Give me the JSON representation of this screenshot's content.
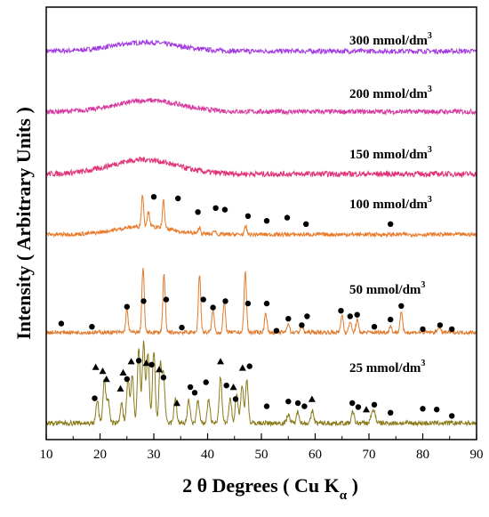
{
  "chart_data": {
    "type": "line",
    "xlabel_main": "2 θ Degrees ( Cu K",
    "xlabel_sub": "α",
    "xlabel_close": " )",
    "ylabel": "Intensity ( Arbitrary Units )",
    "xlim": [
      10,
      90
    ],
    "xticks": [
      "10",
      "20",
      "30",
      "40",
      "50",
      "60",
      "70",
      "80",
      "90"
    ],
    "grid": false,
    "legend": "none",
    "series": [
      {
        "name": "300 mmol/dm",
        "sup": "3",
        "color": "#a33be0",
        "baseline": 5,
        "peaks": [
          [
            28.5,
            11,
            6
          ]
        ],
        "noise": 3,
        "markers": []
      },
      {
        "name": "200 mmol/dm",
        "sup": "3",
        "color": "#d63aa0",
        "baseline": 5,
        "peaks": [
          [
            29,
            14,
            6
          ]
        ],
        "noise": 3,
        "markers": []
      },
      {
        "name": "150 mmol/dm",
        "sup": "3",
        "color": "#e0357a",
        "baseline": 5,
        "peaks": [
          [
            28,
            18,
            6
          ]
        ],
        "noise": 3.5,
        "markers": []
      },
      {
        "name": "100 mmol/dm",
        "sup": "3",
        "color": "#e87a2a",
        "baseline": 5,
        "peaks": [
          [
            28,
            10,
            5
          ],
          [
            27.9,
            40,
            0.2
          ],
          [
            31.8,
            35,
            0.2
          ],
          [
            29,
            18,
            0.25
          ],
          [
            38.5,
            8,
            0.2
          ],
          [
            41.3,
            5,
            0.2
          ],
          [
            47.1,
            10,
            0.2
          ]
        ],
        "noise": 2.5,
        "markers": [
          [
            "dot",
            30,
            52
          ],
          [
            "dot",
            34.5,
            50
          ],
          [
            "dot",
            38.2,
            33
          ],
          [
            "dot",
            41.5,
            38
          ],
          [
            "dot",
            43.2,
            36
          ],
          [
            "dot",
            47.5,
            28
          ],
          [
            "dot",
            51,
            22
          ],
          [
            "dot",
            54.8,
            26
          ],
          [
            "dot",
            58.3,
            18
          ],
          [
            "dot",
            74,
            18
          ]
        ]
      },
      {
        "name": "50 mmol/dm",
        "sup": "3",
        "color": "#e07a2e",
        "baseline": 5,
        "peaks": [
          [
            28,
            80,
            0.22
          ],
          [
            31.9,
            72,
            0.22
          ],
          [
            38.5,
            72,
            0.22
          ],
          [
            47,
            75,
            0.22
          ],
          [
            25,
            28,
            0.22
          ],
          [
            41,
            28,
            0.22
          ],
          [
            43.1,
            38,
            0.22
          ],
          [
            50.8,
            25,
            0.22
          ],
          [
            55,
            12,
            0.22
          ],
          [
            57.5,
            10,
            0.22
          ],
          [
            65,
            22,
            0.22
          ],
          [
            66.5,
            14,
            0.22
          ],
          [
            67.8,
            16,
            0.22
          ],
          [
            76,
            26,
            0.22
          ],
          [
            74,
            8,
            0.22
          ],
          [
            83,
            8,
            0.22
          ]
        ],
        "noise": 2.5,
        "markers": [
          [
            "dot",
            12.8,
            16
          ],
          [
            "dot",
            18.5,
            12
          ],
          [
            "dot",
            25,
            37
          ],
          [
            "dot",
            28.1,
            44
          ],
          [
            "dot",
            32.3,
            46
          ],
          [
            "dot",
            35.2,
            11
          ],
          [
            "dot",
            39.2,
            46
          ],
          [
            "dot",
            41,
            36
          ],
          [
            "dot",
            43.3,
            44
          ],
          [
            "dot",
            47.5,
            41
          ],
          [
            "dot",
            51,
            41
          ],
          [
            "dot",
            52.8,
            7
          ],
          [
            "dot",
            55,
            22
          ],
          [
            "dot",
            57.5,
            14
          ],
          [
            "dot",
            58.5,
            25
          ],
          [
            "dot",
            64.8,
            32
          ],
          [
            "dot",
            66.5,
            25
          ],
          [
            "dot",
            67.8,
            27
          ],
          [
            "dot",
            71,
            12
          ],
          [
            "dot",
            74,
            21
          ],
          [
            "dot",
            76,
            38
          ],
          [
            "dot",
            80,
            9
          ],
          [
            "dot",
            83.2,
            14
          ],
          [
            "dot",
            85.4,
            9
          ]
        ]
      },
      {
        "name": "25 mmol/dm",
        "sup": "3",
        "color": "#8a7a1a",
        "baseline": 5,
        "peaks": [
          [
            19.5,
            28,
            0.25
          ],
          [
            20.8,
            55,
            0.25
          ],
          [
            21.5,
            30,
            0.25
          ],
          [
            24,
            25,
            0.25
          ],
          [
            25.2,
            55,
            0.25
          ],
          [
            26,
            60,
            0.25
          ],
          [
            27.2,
            95,
            0.25
          ],
          [
            28.1,
            100,
            0.25
          ],
          [
            28.9,
            88,
            0.25
          ],
          [
            30,
            90,
            0.25
          ],
          [
            31.2,
            72,
            0.25
          ],
          [
            31.8,
            60,
            0.25
          ],
          [
            34,
            30,
            0.25
          ],
          [
            36.5,
            28,
            0.25
          ],
          [
            38.2,
            28,
            0.25
          ],
          [
            40.2,
            30,
            0.25
          ],
          [
            42.4,
            58,
            0.25
          ],
          [
            44.2,
            30,
            0.25
          ],
          [
            45.4,
            38,
            0.25
          ],
          [
            46.4,
            48,
            0.25
          ],
          [
            47.3,
            55,
            0.25
          ],
          [
            55,
            12,
            0.25
          ],
          [
            56.8,
            15,
            0.25
          ],
          [
            59.5,
            15,
            0.25
          ],
          [
            67,
            14,
            0.25
          ],
          [
            70.5,
            10,
            0.25
          ],
          [
            71,
            14,
            0.25
          ]
        ],
        "noise": 3,
        "markers": [
          [
            "tri",
            19.2,
            75
          ],
          [
            "dot",
            19.0,
            36
          ],
          [
            "tri",
            20.5,
            70
          ],
          [
            "tri",
            21.2,
            60
          ],
          [
            "tri",
            23.8,
            48
          ],
          [
            "tri",
            24.3,
            68
          ],
          [
            "dot",
            25.0,
            60
          ],
          [
            "tri",
            25.8,
            82
          ],
          [
            "dot",
            27.2,
            83
          ],
          [
            "tri",
            28.6,
            80
          ],
          [
            "dot",
            29.6,
            78
          ],
          [
            "tri",
            31.0,
            72
          ],
          [
            "dot",
            31.8,
            62
          ],
          [
            "tri",
            34.3,
            30
          ],
          [
            "dot",
            36.8,
            50
          ],
          [
            "dot",
            37.6,
            43
          ],
          [
            "dot",
            39.7,
            56
          ],
          [
            "tri",
            42.4,
            82
          ],
          [
            "dot",
            43.5,
            52
          ],
          [
            "tri",
            44.8,
            50
          ],
          [
            "dot",
            45.2,
            35
          ],
          [
            "tri",
            46.5,
            74
          ],
          [
            "dot",
            47.8,
            76
          ],
          [
            "dot",
            51.0,
            26
          ],
          [
            "dot",
            55.0,
            32
          ],
          [
            "dot",
            56.8,
            30
          ],
          [
            "dot",
            58.0,
            26
          ],
          [
            "tri",
            59.4,
            35
          ],
          [
            "dot",
            66.9,
            30
          ],
          [
            "dot",
            68.0,
            25
          ],
          [
            "tri",
            69.5,
            22
          ],
          [
            "dot",
            71.0,
            28
          ],
          [
            "dot",
            74.0,
            18
          ],
          [
            "dot",
            80.0,
            23
          ],
          [
            "dot",
            82.6,
            22
          ],
          [
            "dot",
            85.4,
            14
          ]
        ]
      }
    ]
  }
}
